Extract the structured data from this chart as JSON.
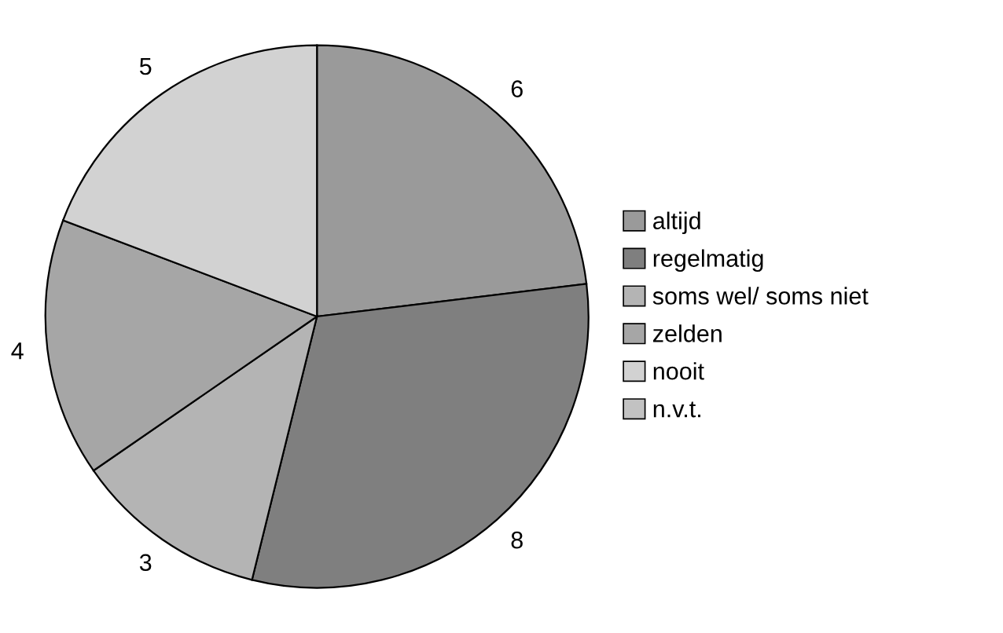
{
  "chart_data": {
    "type": "pie",
    "categories": [
      "altijd",
      "regelmatig",
      "soms wel/ soms niet",
      "zelden",
      "nooit",
      "n.v.t."
    ],
    "values": [
      6,
      8,
      3,
      4,
      5,
      null
    ],
    "colors": [
      "#9a9a9a",
      "#7f7f7f",
      "#b4b4b4",
      "#a6a6a6",
      "#d2d2d2",
      "#c2c2c2"
    ],
    "value_labels": [
      "6",
      "8",
      "3",
      "4",
      "5",
      null
    ],
    "legend": "right"
  }
}
